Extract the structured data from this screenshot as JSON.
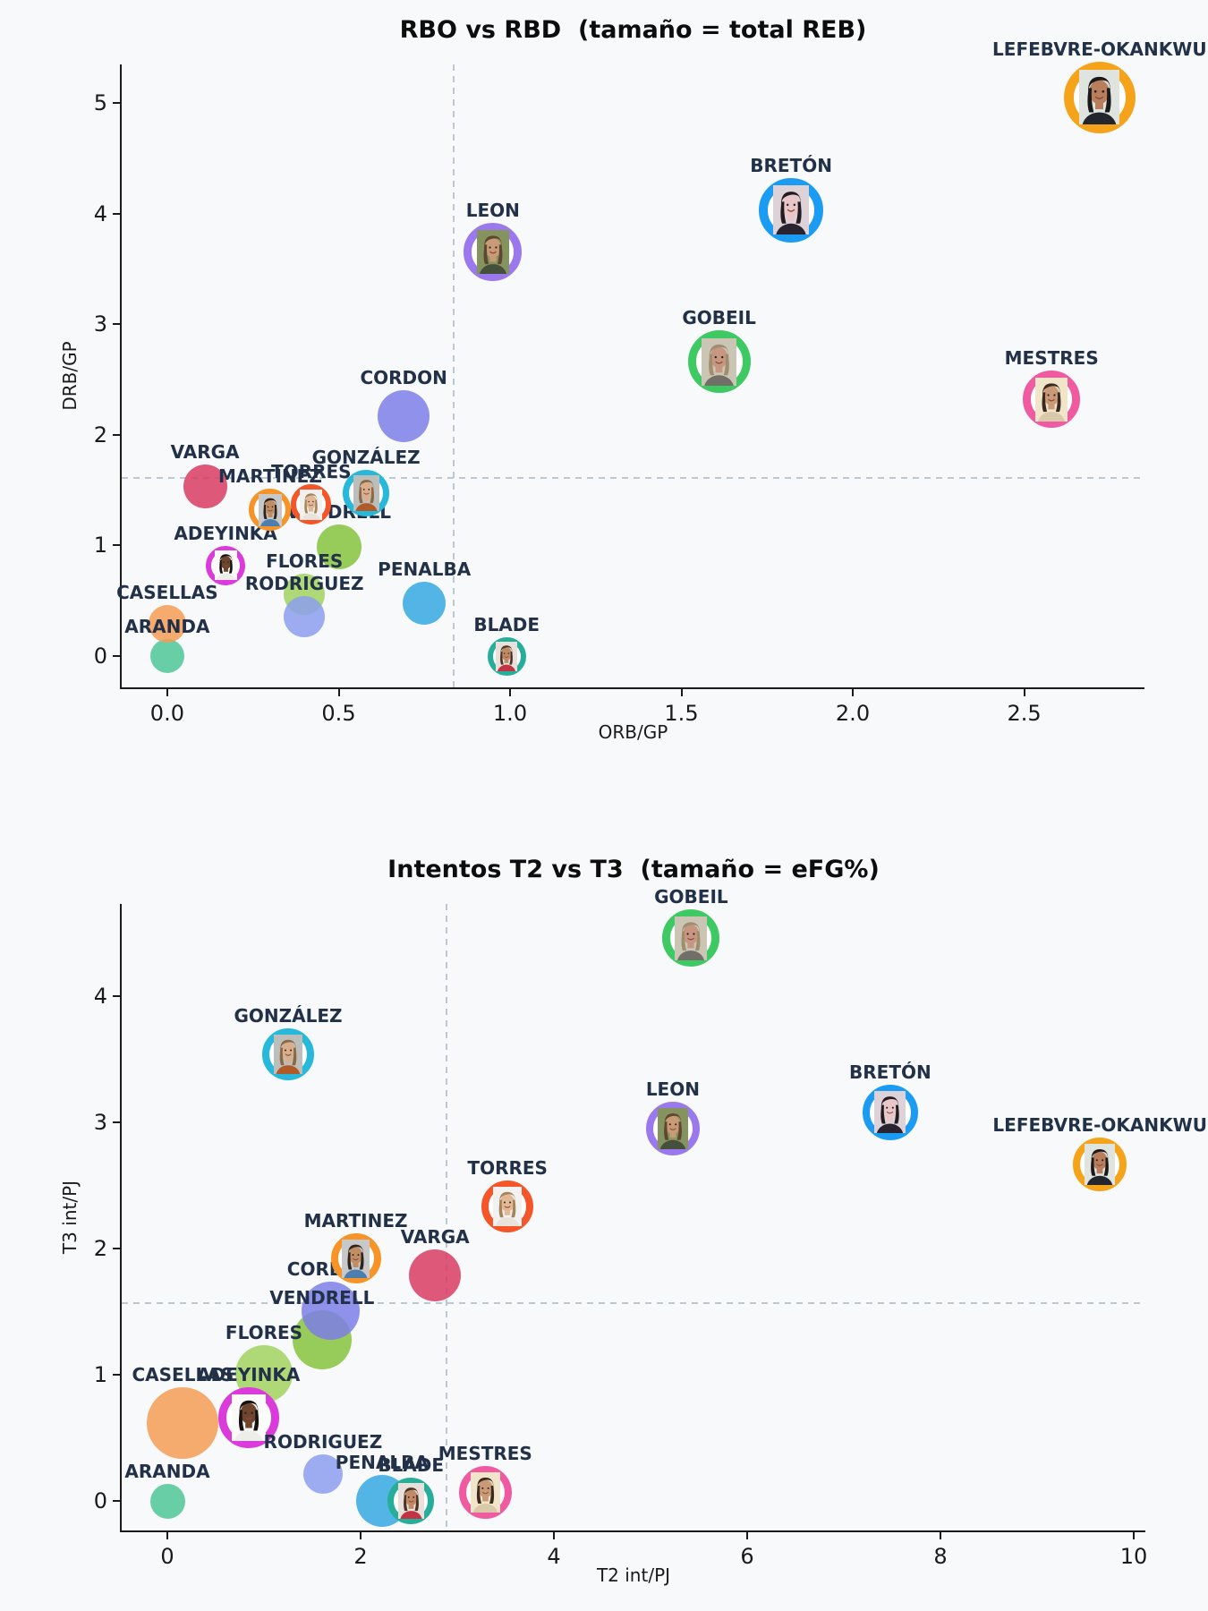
{
  "figure": {
    "background": "#F7F9FB",
    "text_color": "#1a1a1a",
    "annotation_color": "#223148",
    "meanline_color": "#BCC8D4"
  },
  "chart_data": [
    {
      "type": "scatter",
      "title": "RBO vs RBD  (tamaño = total REB)",
      "size_meaning": "total REB",
      "xlabel": "ORB/GP",
      "ylabel": "DRB/GP",
      "xlim": [
        -0.133,
        2.851
      ],
      "ylim": [
        -0.283,
        5.348
      ],
      "x_ticks": [
        {
          "v": 0,
          "label": "0.0"
        },
        {
          "v": 0.5,
          "label": "0.5"
        },
        {
          "v": 1,
          "label": "1.0"
        },
        {
          "v": 1.5,
          "label": "1.5"
        },
        {
          "v": 2,
          "label": "2.0"
        },
        {
          "v": 2.5,
          "label": "2.5"
        }
      ],
      "y_ticks": [
        {
          "v": 0,
          "label": "0"
        },
        {
          "v": 1,
          "label": "1"
        },
        {
          "v": 2,
          "label": "2"
        },
        {
          "v": 3,
          "label": "3"
        },
        {
          "v": 4,
          "label": "4"
        },
        {
          "v": 5,
          "label": "5"
        }
      ],
      "mean_x": 0.835,
      "mean_y": 1.61,
      "grid": false,
      "points": [
        {
          "name": "ARANDA",
          "x": 0.0,
          "y": 0.0,
          "r": 19,
          "style": "circle",
          "color": "#4FC795"
        },
        {
          "name": "CASELLAS",
          "x": 0.0,
          "y": 0.29,
          "r": 21,
          "style": "circle",
          "color": "#F59C55"
        },
        {
          "name": "ADEYINKA",
          "x": 0.17,
          "y": 0.82,
          "r": 22,
          "style": "photo",
          "color": "#DA3BDA"
        },
        {
          "name": "VARGA",
          "x": 0.11,
          "y": 1.53,
          "r": 24.5,
          "style": "circle",
          "color": "#D93C63"
        },
        {
          "name": "FLORES",
          "x": 0.4,
          "y": 0.56,
          "r": 23,
          "style": "circle",
          "color": "#A1D45E"
        },
        {
          "name": "RODRIGUEZ",
          "x": 0.4,
          "y": 0.36,
          "r": 23,
          "style": "circle",
          "color": "#8D9DEE"
        },
        {
          "name": "VENDRELL",
          "x": 0.5,
          "y": 0.99,
          "r": 25,
          "style": "circle",
          "color": "#86C33D"
        },
        {
          "name": "CORDON",
          "x": 0.69,
          "y": 2.17,
          "r": 29,
          "style": "circle",
          "color": "#7D7FE6"
        },
        {
          "name": "MARTINEZ",
          "x": 0.3,
          "y": 1.32,
          "r": 23.5,
          "style": "photo",
          "color": "#F79428"
        },
        {
          "name": "TORRES",
          "x": 0.42,
          "y": 1.37,
          "r": 22.5,
          "style": "photo",
          "color": "#F4562A"
        },
        {
          "name": "GONZÁLEZ",
          "x": 0.58,
          "y": 1.47,
          "r": 26,
          "style": "photo",
          "color": "#27B8DA"
        },
        {
          "name": "PENALBA",
          "x": 0.75,
          "y": 0.48,
          "r": 24,
          "style": "circle",
          "color": "#36A9E0"
        },
        {
          "name": "BLADE",
          "x": 0.99,
          "y": 0.0,
          "r": 21.5,
          "style": "photo",
          "color": "#27AE9B"
        },
        {
          "name": "LEON",
          "x": 0.95,
          "y": 3.65,
          "r": 32.5,
          "style": "photo",
          "color": "#9B79EC"
        },
        {
          "name": "GOBEIL",
          "x": 1.61,
          "y": 2.66,
          "r": 35,
          "style": "photo",
          "color": "#3FC963"
        },
        {
          "name": "BRETÓN",
          "x": 1.82,
          "y": 4.03,
          "r": 36,
          "style": "photo",
          "color": "#1C9BF2"
        },
        {
          "name": "MESTRES",
          "x": 2.58,
          "y": 2.32,
          "r": 32,
          "style": "photo",
          "color": "#EF5AA0"
        },
        {
          "name": "LEFEBVRE-OKANKWU",
          "x": 2.72,
          "y": 5.05,
          "r": 40,
          "style": "photo",
          "color": "#F5A31B"
        }
      ]
    },
    {
      "type": "scatter",
      "title": "Intentos T2 vs T3  (tamaño = eFG%)",
      "size_meaning": "eFG%",
      "xlabel": "T2 int/PJ",
      "ylabel": "T3 int/PJ",
      "xlim": [
        -0.472,
        10.12
      ],
      "ylim": [
        -0.234,
        4.73
      ],
      "x_ticks": [
        {
          "v": 0,
          "label": "0"
        },
        {
          "v": 2,
          "label": "2"
        },
        {
          "v": 4,
          "label": "4"
        },
        {
          "v": 6,
          "label": "6"
        },
        {
          "v": 8,
          "label": "8"
        },
        {
          "v": 10,
          "label": "10"
        }
      ],
      "y_ticks": [
        {
          "v": 0,
          "label": "0"
        },
        {
          "v": 1,
          "label": "1"
        },
        {
          "v": 2,
          "label": "2"
        },
        {
          "v": 3,
          "label": "3"
        },
        {
          "v": 4,
          "label": "4"
        }
      ],
      "mean_x": 2.89,
      "mean_y": 1.57,
      "grid": false,
      "points": [
        {
          "name": "ARANDA",
          "x": 0.0,
          "y": 0.0,
          "r": 19.5,
          "style": "circle",
          "color": "#4FC795"
        },
        {
          "name": "CASELLAS",
          "x": 0.16,
          "y": 0.62,
          "r": 40,
          "style": "circle",
          "color": "#F59C55"
        },
        {
          "name": "ADEYINKA",
          "x": 0.84,
          "y": 0.66,
          "r": 34,
          "style": "photo",
          "color": "#DA3BDA"
        },
        {
          "name": "VARGA",
          "x": 2.77,
          "y": 1.79,
          "r": 29,
          "style": "circle",
          "color": "#D93C63"
        },
        {
          "name": "FLORES",
          "x": 1.0,
          "y": 1.01,
          "r": 32,
          "style": "circle",
          "color": "#A1D45E"
        },
        {
          "name": "RODRIGUEZ",
          "x": 1.61,
          "y": 0.21,
          "r": 22,
          "style": "circle",
          "color": "#8D9DEE"
        },
        {
          "name": "VENDRELL",
          "x": 1.6,
          "y": 1.28,
          "r": 33,
          "style": "circle",
          "color": "#86C33D"
        },
        {
          "name": "CORDON",
          "x": 1.69,
          "y": 1.51,
          "r": 32.5,
          "style": "circle",
          "color": "#7D7FE6"
        },
        {
          "name": "MARTINEZ",
          "x": 1.95,
          "y": 1.92,
          "r": 28,
          "style": "photo",
          "color": "#F79428"
        },
        {
          "name": "TORRES",
          "x": 3.52,
          "y": 2.33,
          "r": 29,
          "style": "photo",
          "color": "#F4562A"
        },
        {
          "name": "GONZÁLEZ",
          "x": 1.25,
          "y": 3.54,
          "r": 29,
          "style": "photo",
          "color": "#27B8DA"
        },
        {
          "name": "PENALBA",
          "x": 2.22,
          "y": 0.0,
          "r": 29,
          "style": "circle",
          "color": "#36A9E0"
        },
        {
          "name": "BLADE",
          "x": 2.52,
          "y": 0.0,
          "r": 26,
          "style": "photo",
          "color": "#27AE9B"
        },
        {
          "name": "LEON",
          "x": 5.23,
          "y": 2.95,
          "r": 30,
          "style": "photo",
          "color": "#9B79EC"
        },
        {
          "name": "GOBEIL",
          "x": 5.42,
          "y": 4.46,
          "r": 32,
          "style": "photo",
          "color": "#3FC963"
        },
        {
          "name": "BRETÓN",
          "x": 7.48,
          "y": 3.08,
          "r": 31,
          "style": "photo",
          "color": "#1C9BF2"
        },
        {
          "name": "MESTRES",
          "x": 3.29,
          "y": 0.07,
          "r": 29.5,
          "style": "photo",
          "color": "#EF5AA0"
        },
        {
          "name": "LEFEBVRE-OKANKWU",
          "x": 9.65,
          "y": 2.67,
          "r": 30,
          "style": "photo",
          "color": "#F5A31B"
        }
      ]
    }
  ],
  "portraits": {
    "ADEYINKA": {
      "bg": "#FAFAF8",
      "skin": "#6E4630",
      "hair": "#16120F",
      "shirt": "#EDEDEA",
      "long": true
    },
    "MARTINEZ": {
      "bg": "#C6C8CA",
      "skin": "#C08E64",
      "hair": "#2E241C",
      "shirt": "#4C7FB0",
      "long": true
    },
    "TORRES": {
      "bg": "#F1F1EF",
      "skin": "#E2B896",
      "hair": "#A5845C",
      "shirt": "#E8E4DC",
      "long": true
    },
    "GONZÁLEZ": {
      "bg": "#BCBEBB",
      "skin": "#D8AE8C",
      "hair": "#8A6844",
      "shirt": "#B05A28",
      "long": true
    },
    "BLADE": {
      "bg": "#E9E0DB",
      "skin": "#C08A66",
      "hair": "#4A3426",
      "shirt": "#C23443",
      "long": true
    },
    "LEON": {
      "bg": "#85945E",
      "skin": "#C99A76",
      "hair": "#5F4632",
      "shirt": "#44503C",
      "long": true
    },
    "GOBEIL": {
      "bg": "#CBC5B6",
      "skin": "#C69680",
      "hair": "#9E8E6E",
      "shirt": "#716F68",
      "long": true
    },
    "BRETÓN": {
      "bg": "#DCD2D8",
      "skin": "#E9C6C8",
      "hair": "#241B20",
      "shirt": "#2A2430",
      "long": true
    },
    "MESTRES": {
      "bg": "#F0E4C9",
      "skin": "#C99A76",
      "hair": "#3C2A20",
      "shirt": "#D9C9A9",
      "long": true
    },
    "LEFEBVRE-OKANKWU": {
      "bg": "#E0E4DF",
      "skin": "#B97E5C",
      "hair": "#1A1A1A",
      "shirt": "#23272D",
      "long": true
    }
  }
}
